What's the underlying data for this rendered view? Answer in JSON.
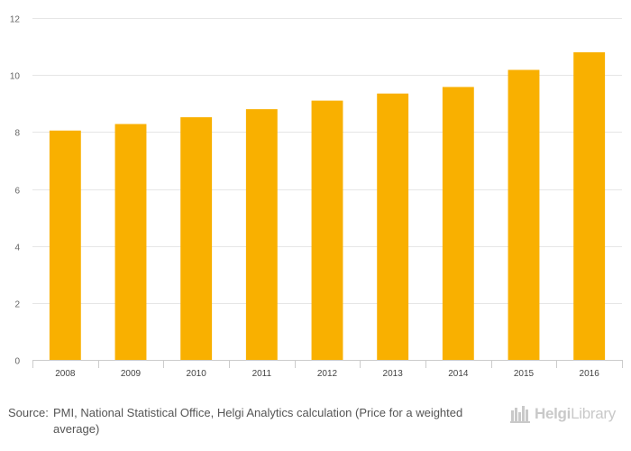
{
  "chart_data": {
    "type": "bar",
    "categories": [
      "2008",
      "2009",
      "2010",
      "2011",
      "2012",
      "2013",
      "2014",
      "2015",
      "2016"
    ],
    "values": [
      8.05,
      8.28,
      8.52,
      8.8,
      9.1,
      9.35,
      9.58,
      10.18,
      10.8
    ],
    "title": "",
    "xlabel": "",
    "ylabel": "",
    "ylim": [
      0,
      12
    ],
    "yticks": [
      0,
      2,
      4,
      6,
      8,
      10,
      12
    ],
    "grid": true,
    "legend": "none",
    "bar_color": "#F9B000"
  },
  "footer": {
    "source_label": "Source:",
    "source_text": "PMI, National Statistical Office, Helgi Analytics calculation (Price for a weighted average)"
  },
  "brand": {
    "name_part1": "Helgi",
    "name_part2": "Library",
    "logo_icon": "helgi-library-logo-icon",
    "color": "#c9c9c9"
  }
}
